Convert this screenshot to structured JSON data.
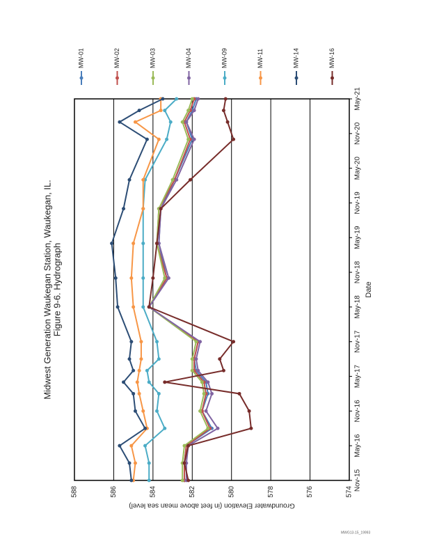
{
  "chart_data": {
    "type": "line",
    "title": [
      "Midwest Generation Waukegan Station, Waukegan, IL.",
      "Figure 9-6. Hydrograph"
    ],
    "xlabel": "Date",
    "ylabel": "Groundwater Elevation (in feet above mean sea level)",
    "x": [
      "2015-11",
      "2016-02",
      "2016-05",
      "2016-08",
      "2016-11",
      "2017-02",
      "2017-04",
      "2017-06",
      "2017-08",
      "2017-11",
      "2018-05",
      "2018-10",
      "2019-04",
      "2019-10",
      "2020-03",
      "2020-10",
      "2021-01",
      "2021-03",
      "2021-05"
    ],
    "xlim": [
      "2015-11",
      "2021-05"
    ],
    "xticks": [
      {
        "value": "2015-11",
        "label": "Nov-15"
      },
      {
        "value": "2016-05",
        "label": "May-16"
      },
      {
        "value": "2016-11",
        "label": "Nov-16"
      },
      {
        "value": "2017-05",
        "label": "May-17"
      },
      {
        "value": "2017-11",
        "label": "Nov-17"
      },
      {
        "value": "2018-05",
        "label": "May-18"
      },
      {
        "value": "2018-11",
        "label": "Nov-18"
      },
      {
        "value": "2019-05",
        "label": "May-19"
      },
      {
        "value": "2019-11",
        "label": "Nov-19"
      },
      {
        "value": "2020-05",
        "label": "May-20"
      },
      {
        "value": "2020-11",
        "label": "Nov-20"
      },
      {
        "value": "2021-05",
        "label": "May-21"
      }
    ],
    "ylim": [
      574,
      588
    ],
    "yticks": [
      574,
      576,
      578,
      580,
      582,
      584,
      586,
      588
    ],
    "grid": true,
    "legend": "right",
    "series": [
      {
        "name": "MW-01",
        "color": "#4a7ebb",
        "values": [
          582.4,
          582.4,
          582.3,
          581.0,
          581.5,
          581.2,
          581.3,
          581.8,
          581.9,
          581.7,
          584.2,
          583.3,
          583.7,
          583.6,
          582.9,
          582.0,
          582.3,
          582.0,
          581.8
        ]
      },
      {
        "name": "MW-02",
        "color": "#c0504d",
        "values": [
          582.4,
          582.4,
          582.3,
          581.1,
          581.5,
          581.3,
          581.4,
          581.9,
          581.9,
          581.7,
          584.2,
          583.3,
          583.8,
          583.7,
          582.9,
          582.1,
          582.4,
          582.1,
          581.9
        ]
      },
      {
        "name": "MW-03",
        "color": "#9bbb59",
        "values": [
          582.5,
          582.5,
          582.4,
          581.2,
          581.6,
          581.4,
          581.5,
          582.0,
          582.0,
          581.8,
          584.2,
          583.4,
          583.8,
          583.7,
          583.0,
          582.2,
          582.5,
          582.2,
          582.0
        ]
      },
      {
        "name": "MW-04",
        "color": "#8064a2",
        "values": [
          582.3,
          582.3,
          582.2,
          580.7,
          581.3,
          581.0,
          581.2,
          581.7,
          581.8,
          581.6,
          584.2,
          583.2,
          583.7,
          583.6,
          582.8,
          581.9,
          582.3,
          581.9,
          581.7
        ]
      },
      {
        "name": "MW-09",
        "color": "#4bacc6",
        "values": [
          584.2,
          584.2,
          584.4,
          583.4,
          583.8,
          583.7,
          584.2,
          584.3,
          583.7,
          583.8,
          584.5,
          584.5,
          584.5,
          584.5,
          584.4,
          583.3,
          583.1,
          583.4,
          582.8
        ]
      },
      {
        "name": "MW-11",
        "color": "#f79646",
        "values": [
          585.0,
          584.9,
          585.1,
          584.3,
          584.5,
          584.7,
          584.8,
          584.7,
          584.6,
          584.6,
          585.0,
          585.1,
          585.0,
          584.5,
          584.5,
          583.7,
          584.9,
          583.6,
          583.6
        ]
      },
      {
        "name": "MW-14",
        "color": "#2c4d75",
        "values": [
          585.1,
          585.2,
          585.7,
          584.4,
          584.9,
          585.0,
          585.5,
          585.0,
          585.2,
          585.1,
          585.8,
          585.9,
          586.1,
          585.5,
          585.2,
          584.3,
          585.7,
          584.7,
          583.5
        ]
      },
      {
        "name": "MW-16",
        "color": "#772c2a",
        "values": [
          582.2,
          582.4,
          582.2,
          579.0,
          579.1,
          579.6,
          583.4,
          580.4,
          580.6,
          579.9,
          584.2,
          584.0,
          583.8,
          583.6,
          582.1,
          579.9,
          580.2,
          580.4,
          580.3
        ]
      }
    ]
  },
  "footer": "MWG13-15_19993"
}
